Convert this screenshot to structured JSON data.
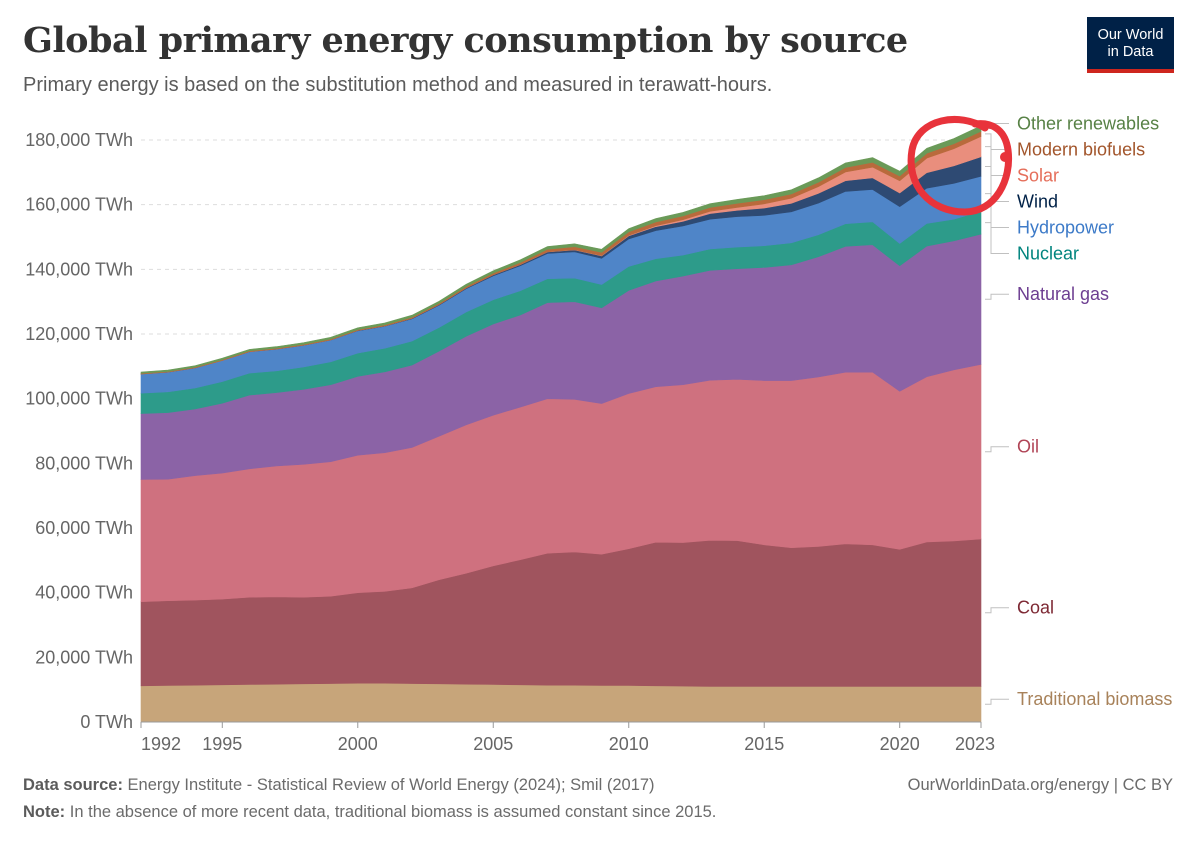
{
  "header": {
    "title": "Global primary energy consumption by source",
    "subtitle": "Primary energy is based on the substitution method and measured in terawatt-hours.",
    "logo_line1": "Our World",
    "logo_line2": "in Data"
  },
  "footer": {
    "source_label": "Data source:",
    "source_text": "Energy Institute - Statistical Review of World Energy (2024); Smil (2017)",
    "note_label": "Note:",
    "note_text": "In the absence of more recent data, traditional biomass is assumed constant since 2015.",
    "credit": "OurWorldinData.org/energy | CC BY"
  },
  "chart_data": {
    "type": "area",
    "stacked": true,
    "x": [
      1992,
      1993,
      1994,
      1995,
      1996,
      1997,
      1998,
      1999,
      2000,
      2001,
      2002,
      2003,
      2004,
      2005,
      2006,
      2007,
      2008,
      2009,
      2010,
      2011,
      2012,
      2013,
      2014,
      2015,
      2016,
      2017,
      2018,
      2019,
      2020,
      2021,
      2022,
      2023
    ],
    "xticks": [
      "1992",
      "1995",
      "2000",
      "2005",
      "2010",
      "2015",
      "2020",
      "2023"
    ],
    "yticks": [
      "0 TWh",
      "20,000 TWh",
      "40,000 TWh",
      "60,000 TWh",
      "80,000 TWh",
      "100,000 TWh",
      "120,000 TWh",
      "140,000 TWh",
      "160,000 TWh",
      "180,000 TWh"
    ],
    "ylim": [
      0,
      180000
    ],
    "grid": "horizontal dashed",
    "legend": "labels at right end of series",
    "annotation": "hand-drawn red circle around 2020-2023 top layers",
    "series": [
      {
        "name": "Traditional biomass",
        "color": "#c7a57a",
        "label_color": "#a8825a",
        "values": [
          11200,
          11300,
          11400,
          11500,
          11600,
          11700,
          11800,
          11900,
          12000,
          12000,
          11900,
          11800,
          11700,
          11600,
          11500,
          11400,
          11400,
          11300,
          11300,
          11200,
          11100,
          11000,
          11000,
          11000,
          11000,
          11000,
          11000,
          11000,
          11000,
          11000,
          11000,
          11000
        ]
      },
      {
        "name": "Coal",
        "color": "#a0545e",
        "label_color": "#7d2833",
        "values": [
          26000,
          26200,
          26300,
          26500,
          27000,
          27000,
          26800,
          27000,
          28000,
          28400,
          29600,
          32200,
          34300,
          36700,
          38700,
          40800,
          41200,
          40600,
          42300,
          44400,
          44400,
          45200,
          45100,
          43800,
          42900,
          43300,
          44100,
          43800,
          42400,
          44700,
          45000,
          45600
        ]
      },
      {
        "name": "Oil",
        "color": "#cf717f",
        "label_color": "#b04456",
        "values": [
          37800,
          37600,
          38500,
          39000,
          39700,
          40500,
          41100,
          41600,
          42500,
          42900,
          43400,
          44400,
          45900,
          46600,
          47200,
          47800,
          47200,
          46600,
          48000,
          48100,
          48800,
          49500,
          49900,
          50800,
          51700,
          52400,
          53100,
          53400,
          48900,
          51100,
          52900,
          54000
        ]
      },
      {
        "name": "Natural gas",
        "color": "#8b63a6",
        "label_color": "#6d3e91",
        "values": [
          20400,
          20600,
          20600,
          21600,
          22800,
          22700,
          23200,
          23800,
          24400,
          25000,
          25500,
          26300,
          27400,
          28200,
          28500,
          29700,
          30200,
          29600,
          31900,
          32700,
          33600,
          34000,
          34200,
          35000,
          35800,
          37200,
          38900,
          39400,
          38800,
          40400,
          39900,
          40300
        ]
      },
      {
        "name": "Nuclear",
        "color": "#2d9b8a",
        "label_color": "#00847e",
        "values": [
          6300,
          6400,
          6500,
          6700,
          6800,
          6700,
          6900,
          7100,
          7200,
          7300,
          7400,
          7300,
          7500,
          7500,
          7500,
          7400,
          7300,
          7200,
          7400,
          6900,
          6500,
          6600,
          6700,
          6700,
          6800,
          6800,
          7000,
          7100,
          6900,
          7000,
          6700,
          7100
        ]
      },
      {
        "name": "Hydropower",
        "color": "#4f85c8",
        "label_color": "#3c7ac8",
        "values": [
          5900,
          6100,
          6200,
          6500,
          6600,
          6700,
          6700,
          6700,
          6900,
          6800,
          6900,
          6900,
          7200,
          7400,
          7700,
          7800,
          8100,
          8100,
          8500,
          8700,
          9000,
          9200,
          9400,
          9400,
          9600,
          9800,
          10000,
          10000,
          11400,
          10900,
          11100,
          10800
        ]
      },
      {
        "name": "Wind",
        "color": "#2e4a73",
        "label_color": "#002147",
        "values": [
          10,
          10,
          20,
          20,
          30,
          40,
          50,
          60,
          80,
          100,
          140,
          180,
          230,
          280,
          360,
          460,
          600,
          750,
          950,
          1200,
          1450,
          1750,
          1950,
          2250,
          2600,
          3000,
          3300,
          3600,
          4200,
          4800,
          5400,
          6000
        ]
      },
      {
        "name": "Solar",
        "color": "#e98e7d",
        "label_color": "#e56e5a",
        "values": [
          0,
          0,
          0,
          0,
          0,
          0,
          0,
          0,
          0,
          0,
          0,
          0,
          10,
          20,
          30,
          40,
          60,
          100,
          150,
          300,
          500,
          700,
          900,
          1300,
          1600,
          2100,
          2700,
          3300,
          3800,
          4500,
          5300,
          6300
        ]
      },
      {
        "name": "Modern biofuels",
        "color": "#b96a3c",
        "label_color": "#a2552b",
        "values": [
          220,
          220,
          230,
          240,
          250,
          270,
          270,
          280,
          290,
          320,
          350,
          390,
          440,
          520,
          650,
          800,
          950,
          1000,
          1100,
          1150,
          1150,
          1200,
          1280,
          1300,
          1300,
          1350,
          1400,
          1500,
          1450,
          1500,
          1550,
          1600
        ]
      },
      {
        "name": "Other renewables",
        "color": "#6a9a58",
        "label_color": "#578145",
        "values": [
          400,
          420,
          440,
          450,
          470,
          490,
          510,
          530,
          560,
          590,
          620,
          660,
          700,
          750,
          800,
          850,
          900,
          950,
          1000,
          1050,
          1100,
          1150,
          1200,
          1250,
          1300,
          1350,
          1400,
          1450,
          1500,
          1550,
          1600,
          1700
        ]
      }
    ]
  }
}
